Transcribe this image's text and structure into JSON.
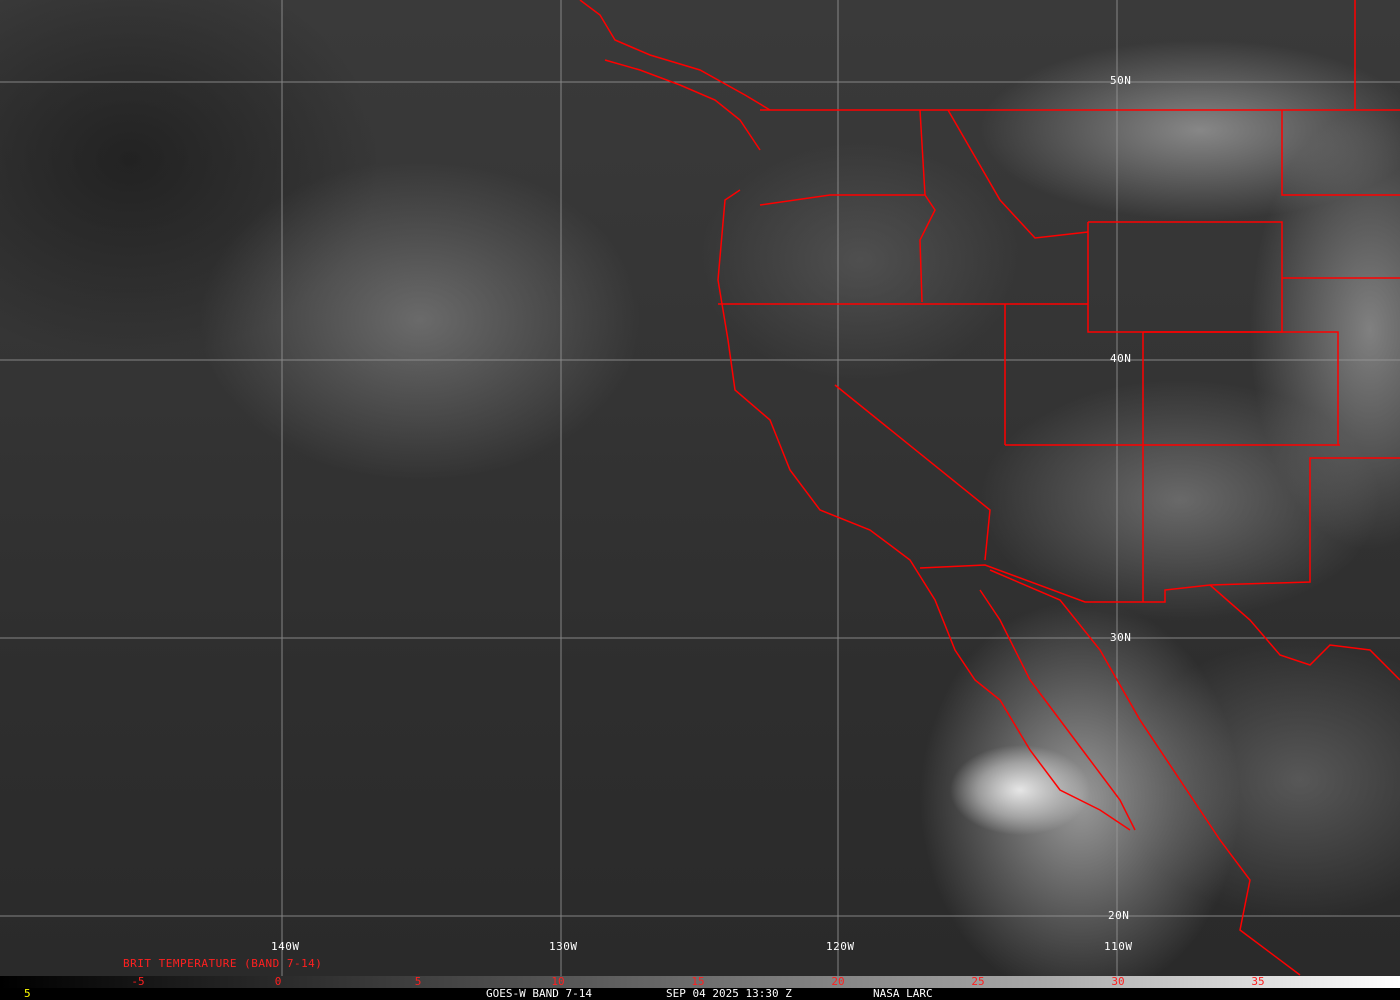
{
  "lat_labels": [
    "50N",
    "40N",
    "30N",
    "20N"
  ],
  "lon_labels": [
    "140W",
    "130W",
    "120W",
    "110W"
  ],
  "scale": {
    "title": "BRIT TEMPERATURE (BAND 7-14)",
    "ticks": [
      "-5",
      "0",
      "5",
      "10",
      "15",
      "20",
      "25",
      "30",
      "35"
    ],
    "left_value": "5"
  },
  "footer": {
    "satellite": "GOES-W BAND 7-14",
    "datetime": "SEP 04 2025 13:30 Z",
    "source": "NASA LARC"
  },
  "colors": {
    "boundaries": "#ff0000",
    "grid": "#9a9a9a",
    "scale_text": "#ff2020",
    "footer_text": "#ffffff",
    "left_value": "#ffff00"
  }
}
